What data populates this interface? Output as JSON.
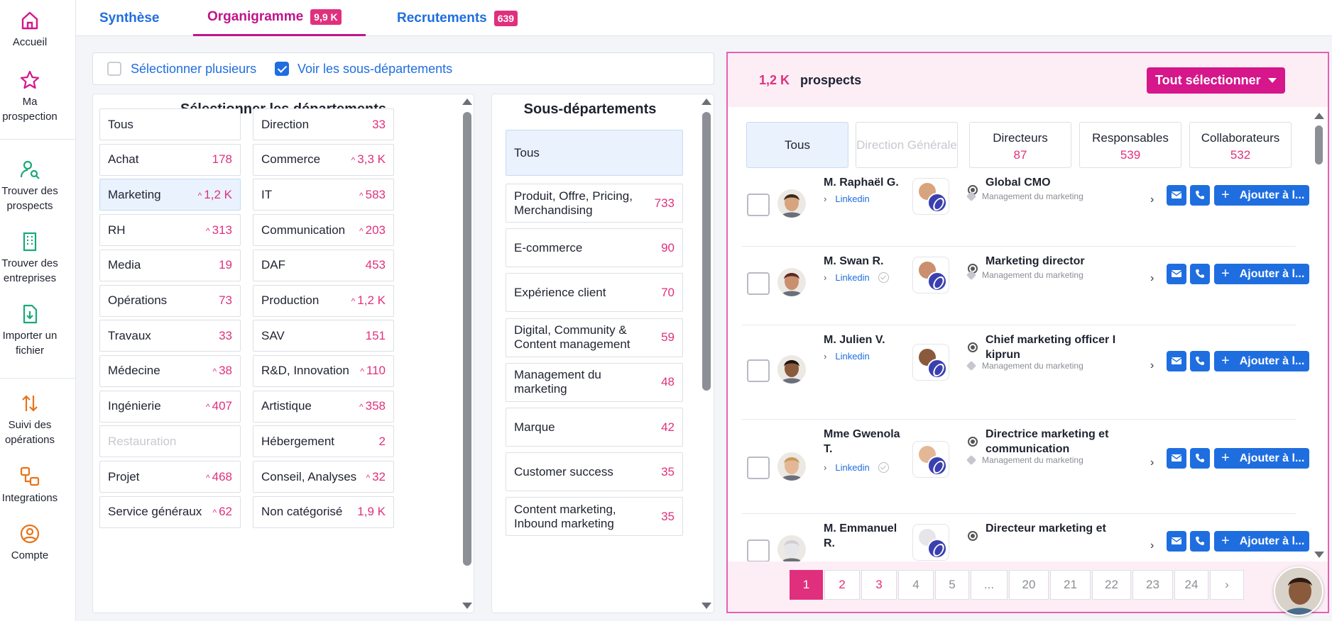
{
  "sidebar": {
    "items": [
      {
        "label": "Accueil",
        "icon": "home-icon"
      },
      {
        "label": "Ma prospection",
        "icon": "star-icon"
      },
      {
        "label": "Trouver des prospects",
        "icon": "person-search-icon"
      },
      {
        "label": "Trouver des entreprises",
        "icon": "building-icon"
      },
      {
        "label": "Importer un fichier",
        "icon": "file-import-icon"
      },
      {
        "label": "Suivi des opérations",
        "icon": "arrows-updown-icon"
      },
      {
        "label": "Integrations",
        "icon": "integrations-icon"
      },
      {
        "label": "Compte",
        "icon": "account-icon"
      }
    ],
    "colors": {
      "primary": "#d6168b",
      "secondary": "#e8731a"
    }
  },
  "tabs": [
    {
      "label": "Synthèse",
      "badge": ""
    },
    {
      "label": "Organigramme",
      "badge": "9,9 K"
    },
    {
      "label": "Recrutements",
      "badge": "639"
    }
  ],
  "options": {
    "multi_label": "Sélectionner plusieurs",
    "multi_checked": false,
    "subdept_label": "Voir les sous-départements",
    "subdept_checked": true
  },
  "departments": {
    "title": "Sélectionner les départements",
    "left": [
      {
        "label": "Tous",
        "count": "",
        "up": false
      },
      {
        "label": "Achat",
        "count": "178",
        "up": false
      },
      {
        "label": "Marketing",
        "count": "1,2 K",
        "up": true
      },
      {
        "label": "RH",
        "count": "313",
        "up": true
      },
      {
        "label": "Media",
        "count": "19",
        "up": false
      },
      {
        "label": "Opérations",
        "count": "73",
        "up": false
      },
      {
        "label": "Travaux",
        "count": "33",
        "up": false
      },
      {
        "label": "Médecine",
        "count": "38",
        "up": true
      },
      {
        "label": "Ingénierie",
        "count": "407",
        "up": true
      },
      {
        "label": "Restauration",
        "count": "",
        "up": false
      },
      {
        "label": "Projet",
        "count": "468",
        "up": true
      },
      {
        "label": "Service généraux",
        "count": "62",
        "up": true
      }
    ],
    "right": [
      {
        "label": "Direction",
        "count": "33",
        "up": false
      },
      {
        "label": "Commerce",
        "count": "3,3 K",
        "up": true
      },
      {
        "label": "IT",
        "count": "583",
        "up": true
      },
      {
        "label": "Communication",
        "count": "203",
        "up": true
      },
      {
        "label": "DAF",
        "count": "453",
        "up": false
      },
      {
        "label": "Production",
        "count": "1,2 K",
        "up": true
      },
      {
        "label": "SAV",
        "count": "151",
        "up": false
      },
      {
        "label": "R&D, Innovation",
        "count": "110",
        "up": true
      },
      {
        "label": "Artistique",
        "count": "358",
        "up": true
      },
      {
        "label": "Hébergement",
        "count": "2",
        "up": false
      },
      {
        "label": "Conseil, Analyses",
        "count": "32",
        "up": true
      },
      {
        "label": "Non catégorisé",
        "count": "1,9 K",
        "up": false
      }
    ]
  },
  "subdepartments": {
    "title": "Sous-départements",
    "items": [
      {
        "label": "Tous",
        "count": ""
      },
      {
        "label": "Produit, Offre, Pricing, Merchandising",
        "count": "733"
      },
      {
        "label": "E-commerce",
        "count": "90"
      },
      {
        "label": "Expérience client",
        "count": "70"
      },
      {
        "label": "Digital, Community & Content management",
        "count": "59"
      },
      {
        "label": "Management du marketing",
        "count": "48"
      },
      {
        "label": "Marque",
        "count": "42"
      },
      {
        "label": "Customer success",
        "count": "35"
      },
      {
        "label": "Content marketing, Inbound marketing",
        "count": "35"
      }
    ]
  },
  "prospects": {
    "count": "1,2 K",
    "count_label": "prospects",
    "select_all": "Tout sélectionner",
    "filters": [
      {
        "label": "Tous",
        "count": ""
      },
      {
        "label": "Direction Générale",
        "count": ""
      },
      {
        "label": "Directeurs",
        "count": "87"
      },
      {
        "label": "Responsables",
        "count": "539"
      },
      {
        "label": "Collaborateurs",
        "count": "532"
      }
    ],
    "rows": [
      {
        "name": "M. Raphaël G.",
        "link": "Linkedin",
        "verified": false,
        "title": "Global CMO",
        "tag": "Management du marketing"
      },
      {
        "name": "M. Swan R.",
        "link": "Linkedin",
        "verified": true,
        "title": "Marketing director",
        "tag": "Management du marketing"
      },
      {
        "name": "M. Julien V.",
        "link": "Linkedin",
        "verified": false,
        "title": "Chief marketing officer I kiprun",
        "tag": "Management du marketing"
      },
      {
        "name": "Mme Gwenola T.",
        "link": "Linkedin",
        "verified": true,
        "title": "Directrice marketing et communication",
        "tag": "Management du marketing"
      },
      {
        "name": "M. Emmanuel R.",
        "link": "",
        "verified": false,
        "title": "Directeur marketing et",
        "tag": ""
      }
    ],
    "add_label": "Ajouter à l...",
    "pages": [
      "1",
      "2",
      "3",
      "4",
      "5",
      "...",
      "20",
      "21",
      "22",
      "23",
      "24",
      "›"
    ],
    "current_page": "1"
  }
}
